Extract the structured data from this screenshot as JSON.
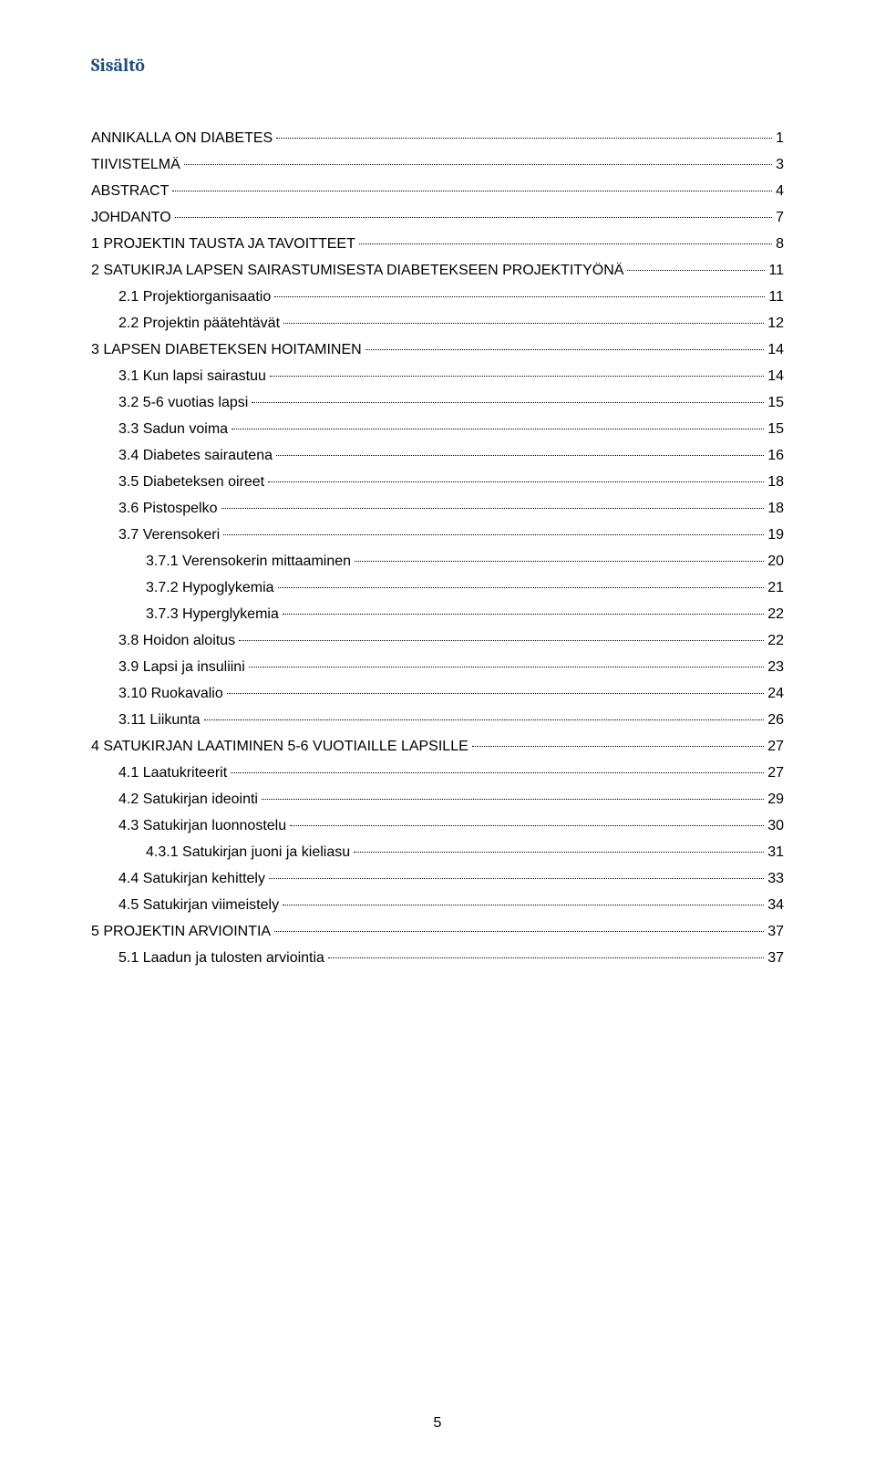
{
  "title": "Sisältö",
  "page_number": "5",
  "colors": {
    "title": "#1f4e79",
    "text": "#000000",
    "background": "#ffffff"
  },
  "typography": {
    "title_fontsize": 20,
    "body_fontsize": 16,
    "title_family": "Cambria",
    "body_family": "Arial"
  },
  "toc": [
    {
      "label": "ANNIKALLA ON DIABETES",
      "page": "1",
      "level": 0
    },
    {
      "label": "TIIVISTELMÄ",
      "page": "3",
      "level": 0
    },
    {
      "label": "ABSTRACT",
      "page": "4",
      "level": 0
    },
    {
      "label": "JOHDANTO",
      "page": "7",
      "level": 0
    },
    {
      "label": "1  PROJEKTIN TAUSTA JA TAVOITTEET",
      "page": "8",
      "level": 0
    },
    {
      "label": "2  SATUKIRJA LAPSEN SAIRASTUMISESTA DIABETEKSEEN PROJEKTITYÖNÄ",
      "page": "11",
      "level": 0
    },
    {
      "label": "2.1  Projektiorganisaatio",
      "page": "11",
      "level": 1
    },
    {
      "label": "2.2  Projektin päätehtävät",
      "page": "12",
      "level": 1
    },
    {
      "label": "3  LAPSEN DIABETEKSEN HOITAMINEN",
      "page": "14",
      "level": 0
    },
    {
      "label": "3.1  Kun lapsi sairastuu",
      "page": "14",
      "level": 1
    },
    {
      "label": "3.2  5-6 vuotias lapsi",
      "page": "15",
      "level": 1
    },
    {
      "label": "3.3  Sadun voima",
      "page": "15",
      "level": 1
    },
    {
      "label": "3.4  Diabetes sairautena",
      "page": "16",
      "level": 1
    },
    {
      "label": "3.5  Diabeteksen oireet",
      "page": "18",
      "level": 1
    },
    {
      "label": "3.6  Pistospelko",
      "page": "18",
      "level": 1
    },
    {
      "label": "3.7  Verensokeri",
      "page": "19",
      "level": 1
    },
    {
      "label": "3.7.1  Verensokerin mittaaminen",
      "page": "20",
      "level": 2
    },
    {
      "label": "3.7.2  Hypoglykemia",
      "page": "21",
      "level": 2
    },
    {
      "label": "3.7.3  Hyperglykemia",
      "page": "22",
      "level": 2
    },
    {
      "label": "3.8  Hoidon aloitus",
      "page": "22",
      "level": 1
    },
    {
      "label": "3.9  Lapsi ja insuliini",
      "page": "23",
      "level": 1
    },
    {
      "label": "3.10 Ruokavalio",
      "page": "24",
      "level": 1
    },
    {
      "label": "3.11 Liikunta",
      "page": "26",
      "level": 1
    },
    {
      "label": "4  SATUKIRJAN LAATIMINEN 5-6 VUOTIAILLE LAPSILLE",
      "page": "27",
      "level": 0
    },
    {
      "label": "4.1  Laatukriteerit",
      "page": "27",
      "level": 1
    },
    {
      "label": "4.2  Satukirjan ideointi",
      "page": "29",
      "level": 1
    },
    {
      "label": "4.3  Satukirjan luonnostelu",
      "page": "30",
      "level": 1
    },
    {
      "label": "4.3.1  Satukirjan juoni ja kieliasu",
      "page": "31",
      "level": 2
    },
    {
      "label": "4.4  Satukirjan kehittely",
      "page": "33",
      "level": 1
    },
    {
      "label": "4.5  Satukirjan viimeistely",
      "page": "34",
      "level": 1
    },
    {
      "label": "5  PROJEKTIN ARVIOINTIA",
      "page": "37",
      "level": 0
    },
    {
      "label": "5.1  Laadun ja tulosten arviointia",
      "page": "37",
      "level": 1
    }
  ]
}
